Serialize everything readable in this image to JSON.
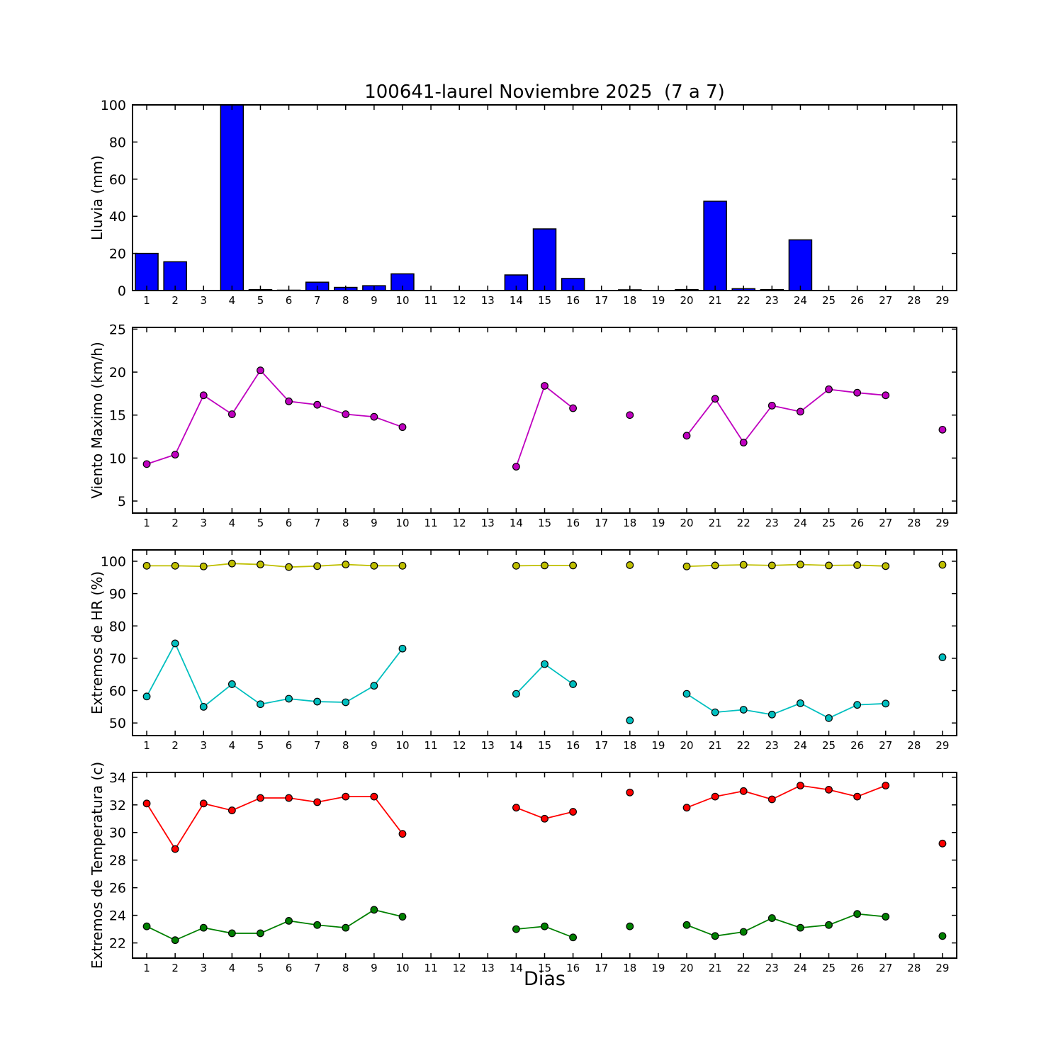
{
  "title": "100641-laurel Noviembre 2025  (7 a 7)",
  "xlabel": "Dias",
  "colors": {
    "bar": "#0000ff",
    "wind": "#bf00bf",
    "hr_max": "#bfbf00",
    "hr_min": "#00bfbf",
    "temp_max": "#ff0000",
    "temp_min": "#008000",
    "axis": "#000000",
    "background": "#ffffff"
  },
  "days": [
    1,
    2,
    3,
    4,
    5,
    6,
    7,
    8,
    9,
    10,
    11,
    12,
    13,
    14,
    15,
    16,
    17,
    18,
    19,
    20,
    21,
    22,
    23,
    24,
    25,
    26,
    27,
    28,
    29
  ],
  "chart_data": [
    {
      "type": "bar",
      "title": "",
      "ylabel": "Lluvia (mm)",
      "xlabel": "",
      "yticks": [
        0,
        20,
        40,
        60,
        80,
        100
      ],
      "ylim": [
        0,
        100
      ],
      "grid": false,
      "legend": "none",
      "series": [
        {
          "name": "lluvia",
          "color": "bar",
          "values": [
            20,
            15.5,
            0,
            100,
            0.5,
            0.2,
            4.5,
            1.7,
            2.6,
            9,
            0,
            0,
            0,
            8.4,
            33.2,
            6.5,
            0,
            0.4,
            0,
            0.5,
            48.1,
            1.0,
            0.5,
            27.3,
            0,
            0,
            0,
            0,
            0
          ]
        }
      ]
    },
    {
      "type": "line",
      "title": "",
      "ylabel": "Viento Maximo (km/h)",
      "xlabel": "",
      "yticks": [
        5,
        10,
        15,
        20,
        25
      ],
      "ylim": [
        3.6,
        25.2
      ],
      "grid": false,
      "legend": "none",
      "series": [
        {
          "name": "viento_maximo",
          "color": "wind",
          "values": [
            9.3,
            10.4,
            17.3,
            15.1,
            20.2,
            16.6,
            16.2,
            15.1,
            14.8,
            13.6,
            null,
            null,
            null,
            9.0,
            18.4,
            15.8,
            null,
            15.0,
            null,
            12.6,
            16.9,
            11.8,
            16.1,
            15.4,
            18.0,
            17.6,
            17.3,
            null,
            13.3
          ]
        }
      ]
    },
    {
      "type": "line",
      "title": "",
      "ylabel": "Extremos de HR (%)",
      "xlabel": "",
      "yticks": [
        50,
        60,
        70,
        80,
        90,
        100
      ],
      "ylim": [
        46.1,
        103.5
      ],
      "grid": false,
      "legend": "none",
      "series": [
        {
          "name": "hr_maxima",
          "color": "hr_max",
          "values": [
            98.6,
            98.6,
            98.4,
            99.3,
            99.0,
            98.2,
            98.5,
            99.0,
            98.6,
            98.6,
            null,
            null,
            null,
            98.6,
            98.7,
            98.7,
            null,
            98.8,
            null,
            98.4,
            98.7,
            98.9,
            98.7,
            99.0,
            98.7,
            98.8,
            98.5,
            null,
            98.9
          ]
        },
        {
          "name": "hr_minima",
          "color": "hr_min",
          "values": [
            58.2,
            74.6,
            55.0,
            62.0,
            55.8,
            57.5,
            56.6,
            56.4,
            61.5,
            73.0,
            null,
            null,
            null,
            59.0,
            68.2,
            62.0,
            null,
            50.8,
            null,
            59.0,
            53.3,
            54.1,
            52.6,
            56.1,
            51.5,
            55.6,
            56.0,
            null,
            70.3
          ]
        }
      ]
    },
    {
      "type": "line",
      "title": "",
      "ylabel": "Extremos de Temperatura (c)",
      "xlabel": "Dias",
      "yticks": [
        22,
        24,
        26,
        28,
        30,
        32,
        34
      ],
      "ylim": [
        20.9,
        34.35
      ],
      "grid": false,
      "legend": "none",
      "series": [
        {
          "name": "temp_maxima",
          "color": "temp_max",
          "values": [
            32.1,
            28.8,
            32.1,
            31.6,
            32.5,
            32.5,
            32.2,
            32.6,
            32.6,
            29.9,
            null,
            null,
            null,
            31.8,
            31.0,
            31.5,
            null,
            32.9,
            null,
            31.8,
            32.6,
            33.0,
            32.4,
            33.4,
            33.1,
            32.6,
            33.4,
            null,
            29.2
          ]
        },
        {
          "name": "temp_minima",
          "color": "temp_min",
          "values": [
            23.2,
            22.2,
            23.1,
            22.7,
            22.7,
            23.6,
            23.3,
            23.1,
            24.4,
            23.9,
            null,
            null,
            null,
            23.0,
            23.2,
            22.4,
            null,
            23.2,
            null,
            23.3,
            22.5,
            22.8,
            23.8,
            23.1,
            23.3,
            24.1,
            23.9,
            null,
            22.5
          ]
        }
      ]
    }
  ]
}
